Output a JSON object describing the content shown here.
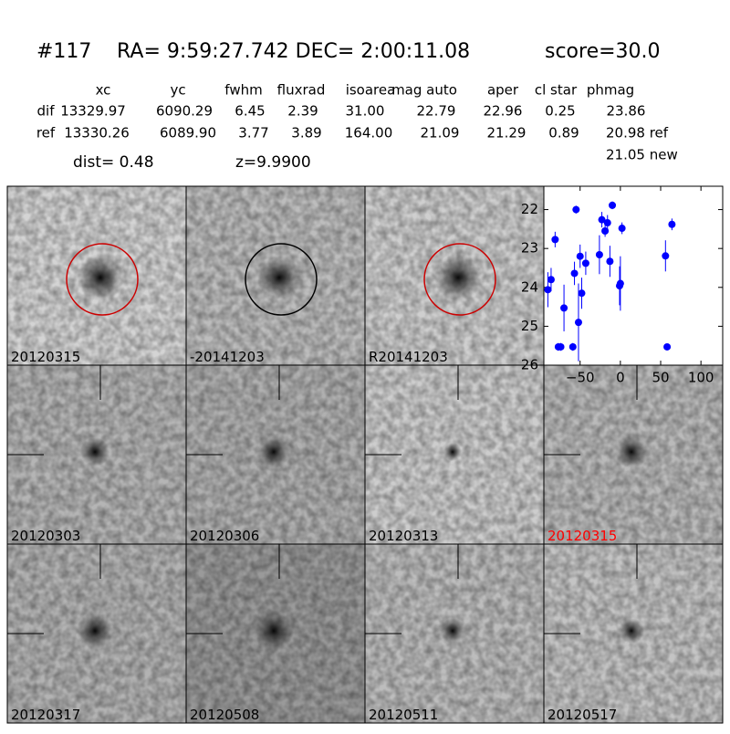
{
  "header": {
    "id": "#117",
    "coords": "RA= 9:59:27.742 DEC= 2:00:11.08",
    "score": "score=30.0"
  },
  "table": {
    "columns": [
      "xc",
      "yc",
      "fwhm",
      "fluxrad",
      "isoarea",
      "mag auto",
      "aper",
      "cl star",
      "phmag"
    ],
    "rows": [
      [
        "dif",
        "13329.97",
        "6090.29",
        "6.45",
        "2.39",
        "31.00",
        "22.79",
        "22.96",
        "0.25",
        "23.86"
      ],
      [
        "ref",
        "13330.26",
        "6089.90",
        "3.77",
        "3.89",
        "164.00",
        "21.09",
        "21.29",
        "0.89",
        "20.98 ref"
      ]
    ],
    "extra": "21.05 new"
  },
  "info": {
    "dist": "dist=  0.48",
    "z": "z=9.9900"
  },
  "panels": [
    {
      "label": "20120315",
      "circle": "#cc0000"
    },
    {
      "label": "-20141203",
      "circle": "#000000"
    },
    {
      "label": "R20141203",
      "circle": "#cc0000"
    },
    {
      "label": "20120303"
    },
    {
      "label": "20120306"
    },
    {
      "label": "20120313"
    },
    {
      "label": "20120315",
      "color": "#ff0000"
    },
    {
      "label": "20120317"
    },
    {
      "label": "20120508"
    },
    {
      "label": "20120511"
    },
    {
      "label": "20120517"
    }
  ],
  "chart_data": {
    "type": "scatter",
    "color": "#0000ff",
    "x": [
      -90,
      -86,
      -81,
      -77,
      -74,
      -70,
      -59,
      -57,
      -55,
      -52,
      -50,
      -48,
      -43,
      -26,
      -23,
      -19,
      -16,
      -13,
      -10,
      -1,
      0,
      2,
      56,
      58,
      64
    ],
    "values": [
      24.06,
      23.8,
      22.77,
      25.53,
      25.53,
      24.53,
      25.53,
      23.64,
      22.0,
      24.9,
      23.2,
      24.15,
      23.38,
      23.16,
      22.26,
      22.55,
      22.34,
      23.33,
      21.89,
      23.96,
      23.9,
      22.48,
      23.19,
      25.53,
      22.38
    ],
    "errors": [
      0.45,
      0.3,
      0.2,
      0.1,
      0.1,
      0.6,
      0.1,
      0.3,
      0.1,
      1.0,
      0.3,
      0.4,
      0.3,
      0.5,
      0.2,
      0.15,
      0.2,
      0.4,
      0.1,
      0.5,
      0.7,
      0.15,
      0.4,
      0.05,
      0.15
    ],
    "xlim": [
      -95,
      127
    ],
    "ylim": [
      21.4,
      26
    ],
    "inverted_y": true,
    "xticks": [
      {
        "value": -50,
        "label": "−50"
      },
      0,
      50,
      100
    ],
    "yticks": [
      22,
      23,
      24,
      25,
      26
    ]
  }
}
